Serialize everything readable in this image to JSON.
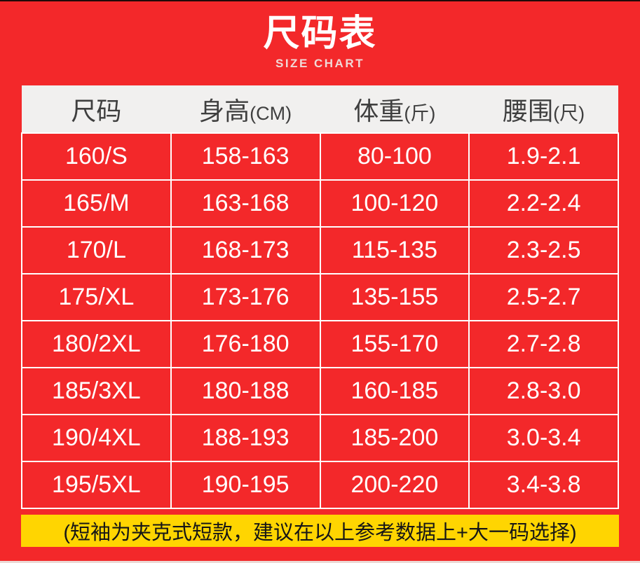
{
  "chart_data": {
    "type": "table",
    "title": "尺码表",
    "subtitle": "SIZE CHART",
    "columns": [
      {
        "label": "尺码",
        "unit": ""
      },
      {
        "label": "身高",
        "unit": "(CM)"
      },
      {
        "label": "体重",
        "unit": "(斤)"
      },
      {
        "label": "腰围",
        "unit": "(尺)"
      }
    ],
    "rows": [
      [
        "160/S",
        "158-163",
        "80-100",
        "1.9-2.1"
      ],
      [
        "165/M",
        "163-168",
        "100-120",
        "2.2-2.4"
      ],
      [
        "170/L",
        "168-173",
        "115-135",
        "2.3-2.5"
      ],
      [
        "175/XL",
        "173-176",
        "135-155",
        "2.5-2.7"
      ],
      [
        "180/2XL",
        "176-180",
        "155-170",
        "2.7-2.8"
      ],
      [
        "185/3XL",
        "180-188",
        "160-185",
        "2.8-3.0"
      ],
      [
        "190/4XL",
        "188-193",
        "185-200",
        "3.0-3.4"
      ],
      [
        "195/5XL",
        "190-195",
        "200-220",
        "3.4-3.8"
      ]
    ]
  },
  "note": {
    "text": "(短袖为夹克式短款，建议在以上参考数据上+大一码选择)"
  },
  "colors": {
    "red": "#f3282a",
    "header_row_bg": "#f1f0ef",
    "header_text": "#3f3f3f",
    "cell_text": "#ffffff",
    "grid_border": "#ffffff",
    "note_bg": "#ffd501",
    "note_text": "#161616",
    "subtitle_text": "#f0d9d7",
    "top_line": "#200a08",
    "bottom_strip": "#ecdad6"
  }
}
